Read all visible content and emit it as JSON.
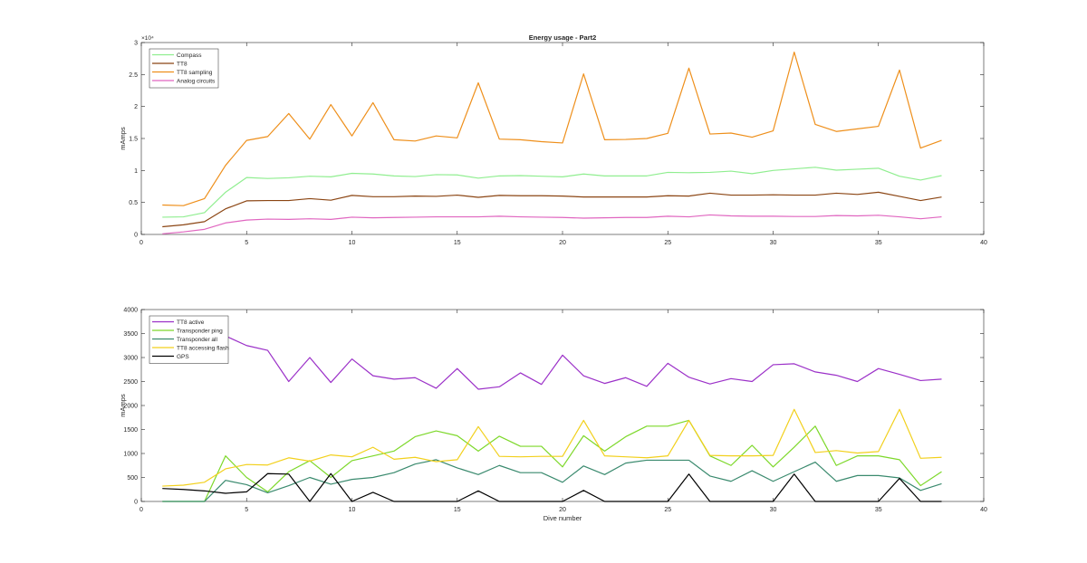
{
  "figure_title": "Energy usage - Part2",
  "chart_data": [
    {
      "type": "line",
      "title": "Energy usage - Part2",
      "xlabel": "",
      "ylabel": "mAmps",
      "xlim": [
        0,
        40
      ],
      "ylim": [
        0,
        30000
      ],
      "xticks": [
        0,
        5,
        10,
        15,
        20,
        25,
        30,
        35,
        40
      ],
      "yticks": [
        0,
        5000,
        10000,
        15000,
        20000,
        25000,
        30000
      ],
      "ytick_labels": [
        "0",
        "0.5",
        "1",
        "1.5",
        "2",
        "2.5",
        "3"
      ],
      "y_exponent_label": "×10⁴",
      "grid": false,
      "legend_position": "top-left",
      "x": [
        1,
        2,
        3,
        4,
        5,
        6,
        7,
        8,
        9,
        10,
        11,
        12,
        13,
        14,
        15,
        16,
        17,
        18,
        19,
        20,
        21,
        22,
        23,
        24,
        25,
        26,
        27,
        28,
        29,
        30,
        31,
        32,
        33,
        34,
        35,
        36,
        37,
        38
      ],
      "series": [
        {
          "name": "Compass",
          "color": "#90ee90",
          "values": [
            2700,
            2750,
            3400,
            6600,
            8900,
            8750,
            8850,
            9100,
            9000,
            9550,
            9450,
            9150,
            9050,
            9350,
            9300,
            8800,
            9150,
            9200,
            9100,
            9000,
            9450,
            9150,
            9150,
            9150,
            9700,
            9650,
            9700,
            9900,
            9500,
            10000,
            10250,
            10500,
            10050,
            10200,
            10350,
            9100,
            8500,
            9200
          ]
        },
        {
          "name": "TT8",
          "color": "#8b4513",
          "values": [
            1200,
            1500,
            2000,
            4000,
            5250,
            5300,
            5300,
            5600,
            5350,
            6100,
            5900,
            5900,
            6000,
            5950,
            6150,
            5800,
            6100,
            6050,
            6050,
            6000,
            5850,
            5850,
            5850,
            5850,
            6050,
            6000,
            6450,
            6150,
            6150,
            6200,
            6150,
            6150,
            6450,
            6250,
            6600,
            5950,
            5300,
            5850
          ]
        },
        {
          "name": "TT8 sampling",
          "color": "#ee8f1b",
          "values": [
            4600,
            4500,
            5600,
            10800,
            14700,
            15300,
            18900,
            14900,
            20300,
            15400,
            20600,
            14800,
            14600,
            15400,
            15100,
            23700,
            14900,
            14800,
            14500,
            14300,
            25100,
            14800,
            14850,
            15000,
            15800,
            26000,
            15700,
            15850,
            15200,
            16200,
            28500,
            17200,
            16100,
            16500,
            16900,
            25700,
            13500,
            14700
          ]
        },
        {
          "name": "Analog circuits",
          "color": "#e066c0",
          "values": [
            100,
            400,
            800,
            1800,
            2250,
            2400,
            2350,
            2450,
            2350,
            2700,
            2600,
            2650,
            2700,
            2750,
            2750,
            2750,
            2850,
            2750,
            2700,
            2650,
            2550,
            2600,
            2650,
            2650,
            2850,
            2750,
            3050,
            2900,
            2850,
            2850,
            2800,
            2800,
            2950,
            2900,
            3000,
            2750,
            2450,
            2750
          ]
        }
      ]
    },
    {
      "type": "line",
      "title": "",
      "xlabel": "Dive number",
      "ylabel": "mAmps",
      "xlim": [
        0,
        40
      ],
      "ylim": [
        0,
        4000
      ],
      "xticks": [
        0,
        5,
        10,
        15,
        20,
        25,
        30,
        35,
        40
      ],
      "yticks": [
        0,
        500,
        1000,
        1500,
        2000,
        2500,
        3000,
        3500,
        4000
      ],
      "ytick_labels": [
        "0",
        "500",
        "1000",
        "1500",
        "2000",
        "2500",
        "3000",
        "3500",
        "4000"
      ],
      "grid": false,
      "legend_position": "top-left",
      "x": [
        1,
        2,
        3,
        4,
        5,
        6,
        7,
        8,
        9,
        10,
        11,
        12,
        13,
        14,
        15,
        16,
        17,
        18,
        19,
        20,
        21,
        22,
        23,
        24,
        25,
        26,
        27,
        28,
        29,
        30,
        31,
        32,
        33,
        34,
        35,
        36,
        37,
        38
      ],
      "series": [
        {
          "name": "TT8 active",
          "color": "#9b30c8",
          "values": [
            null,
            null,
            null,
            3450,
            3250,
            3150,
            2500,
            3000,
            2480,
            2970,
            2620,
            2550,
            2580,
            2360,
            2770,
            2340,
            2390,
            2680,
            2440,
            3050,
            2620,
            2460,
            2580,
            2400,
            2880,
            2590,
            2450,
            2560,
            2500,
            2850,
            2870,
            2700,
            2630,
            2500,
            2770,
            2650,
            2520,
            2550
          ]
        },
        {
          "name": "Transponder ping",
          "color": "#7dd82a",
          "values": [
            0,
            0,
            0,
            950,
            500,
            200,
            620,
            850,
            500,
            850,
            950,
            1050,
            1350,
            1470,
            1370,
            1050,
            1360,
            1150,
            1150,
            720,
            1370,
            1050,
            1350,
            1570,
            1570,
            1690,
            950,
            750,
            1170,
            720,
            1130,
            1570,
            750,
            950,
            950,
            870,
            330,
            620
          ]
        },
        {
          "name": "Transponder all",
          "color": "#3a8a6e",
          "values": [
            0,
            0,
            0,
            440,
            350,
            180,
            330,
            500,
            360,
            460,
            500,
            600,
            780,
            870,
            700,
            560,
            750,
            600,
            600,
            400,
            740,
            560,
            800,
            860,
            860,
            860,
            530,
            420,
            640,
            420,
            620,
            820,
            420,
            540,
            540,
            490,
            230,
            370
          ]
        },
        {
          "name": "TT8 accessing flash",
          "color": "#f2d01c",
          "values": [
            320,
            340,
            400,
            680,
            770,
            760,
            910,
            840,
            970,
            930,
            1130,
            880,
            920,
            830,
            870,
            1560,
            940,
            930,
            940,
            940,
            1690,
            950,
            930,
            910,
            950,
            1690,
            960,
            950,
            950,
            960,
            1920,
            1020,
            1060,
            1010,
            1040,
            1920,
            900,
            920
          ]
        },
        {
          "name": "GPS",
          "color": "#000000",
          "values": [
            270,
            250,
            220,
            170,
            200,
            580,
            570,
            0,
            580,
            0,
            190,
            0,
            0,
            0,
            0,
            220,
            0,
            0,
            0,
            0,
            230,
            0,
            0,
            0,
            0,
            570,
            0,
            0,
            0,
            0,
            570,
            0,
            0,
            0,
            0,
            480,
            0,
            0
          ]
        }
      ]
    }
  ]
}
